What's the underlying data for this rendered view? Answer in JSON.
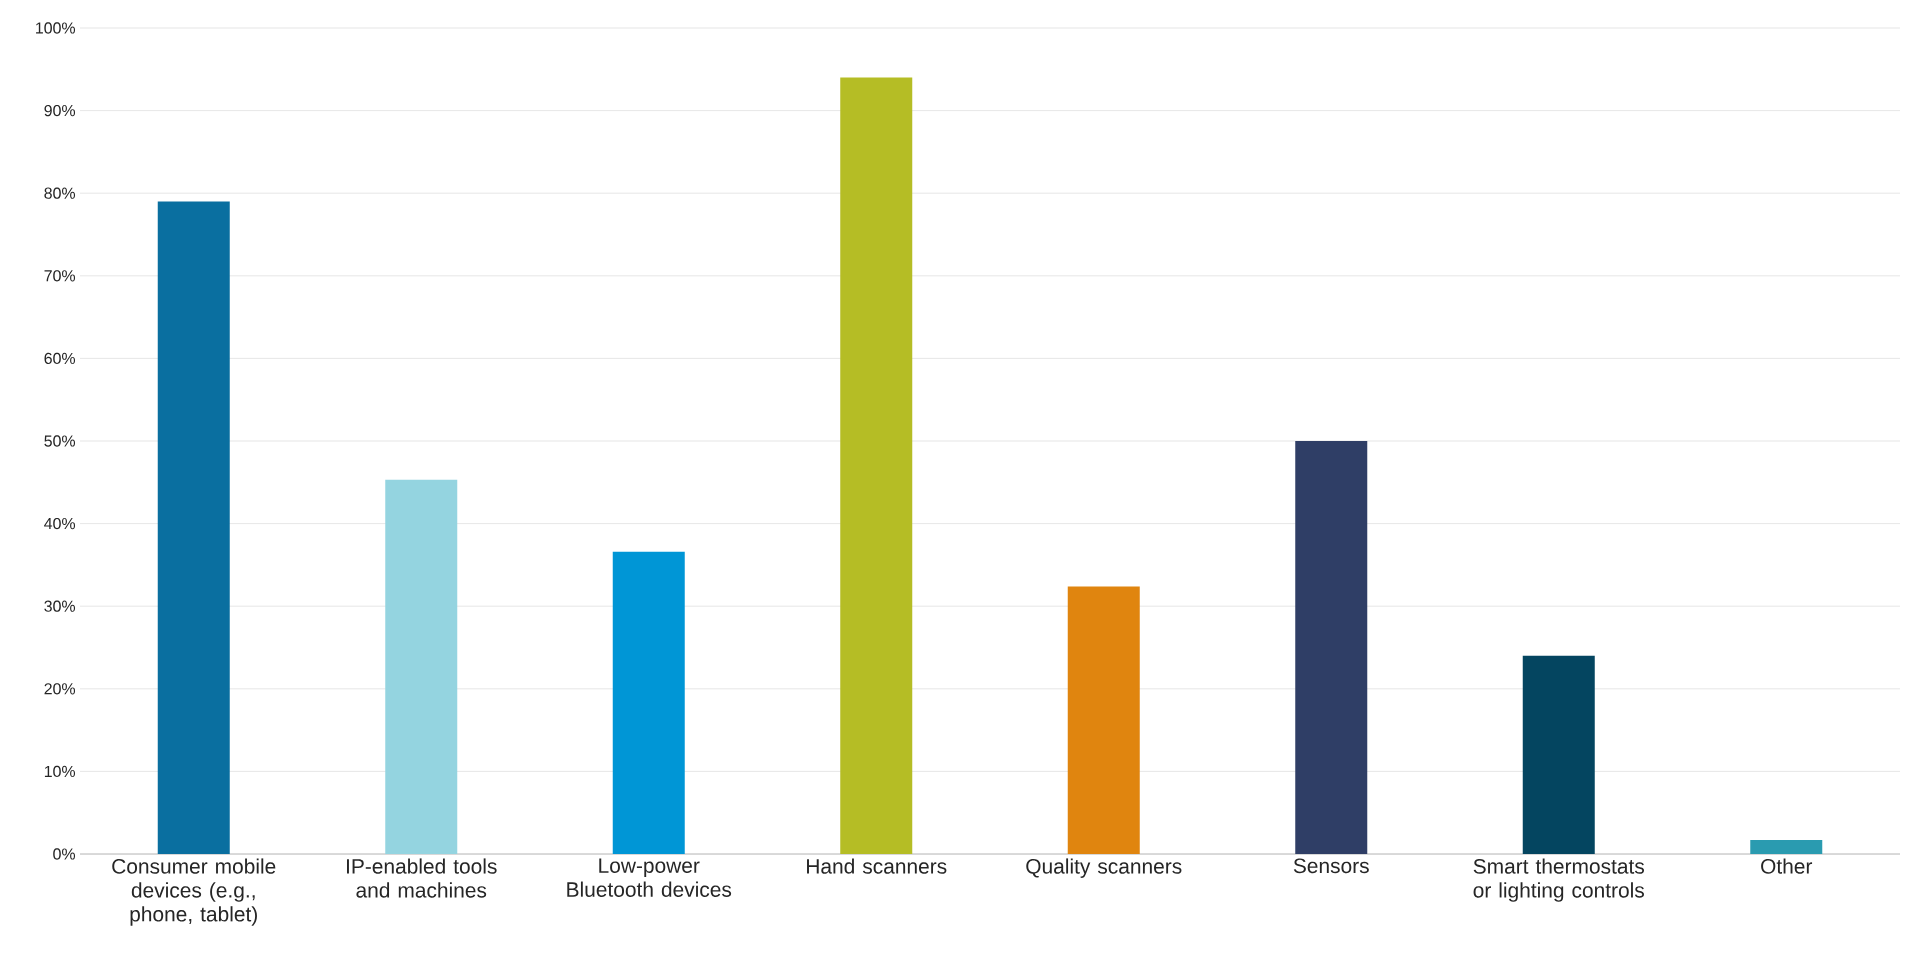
{
  "chart_data": {
    "type": "bar",
    "categories": [
      "Consumer mobile devices (e.g., phone, tablet)",
      "IP-enabled tools and machines",
      "Low-power Bluetooth devices",
      "Hand scanners",
      "Quality scanners",
      "Sensors",
      "Smart thermostats or lighting controls",
      "Other"
    ],
    "values": [
      79,
      45.3,
      36.6,
      94,
      32.4,
      50,
      24,
      1.7
    ],
    "colors": [
      "#0a6fa0",
      "#94d4e0",
      "#0096d6",
      "#b5bd25",
      "#e0850f",
      "#2f3e66",
      "#044560",
      "#2a9bb0"
    ],
    "ylim": [
      0,
      100
    ],
    "yticks": [
      {
        "value": 0,
        "label": "0%"
      },
      {
        "value": 10,
        "label": "10%"
      },
      {
        "value": 20,
        "label": "20%"
      },
      {
        "value": 30,
        "label": "30%"
      },
      {
        "value": 40,
        "label": "40%"
      },
      {
        "value": 50,
        "label": "50%"
      },
      {
        "value": 60,
        "label": "60%"
      },
      {
        "value": 70,
        "label": "70%"
      },
      {
        "value": 80,
        "label": "80%"
      },
      {
        "value": 90,
        "label": "90%"
      },
      {
        "value": 100,
        "label": "100%"
      }
    ],
    "grid": "y"
  }
}
